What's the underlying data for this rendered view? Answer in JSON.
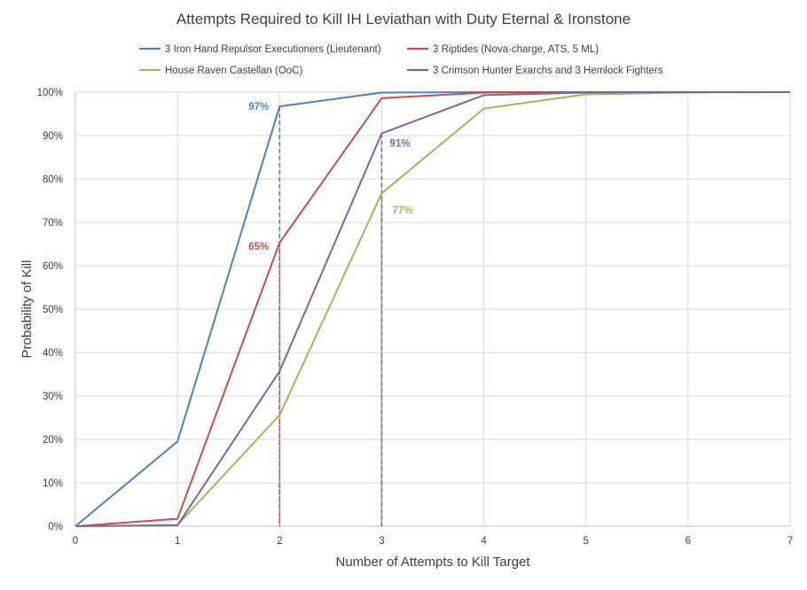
{
  "chart_data": {
    "type": "line",
    "title": "Attempts Required to Kill IH Leviathan with Duty Eternal & Ironstone",
    "xlabel": "Number of Attempts to Kill Target",
    "ylabel": "Probability of Kill",
    "xlim": [
      0,
      7
    ],
    "ylim": [
      0,
      100
    ],
    "x_ticks": [
      "0",
      "1",
      "2",
      "3",
      "4",
      "5",
      "6",
      "7"
    ],
    "y_ticks": [
      "0%",
      "10%",
      "20%",
      "30%",
      "40%",
      "50%",
      "60%",
      "70%",
      "80%",
      "90%",
      "100%"
    ],
    "grid": true,
    "legend_position": "top",
    "x": [
      0,
      1,
      2,
      3,
      4,
      5,
      6,
      7
    ],
    "series": [
      {
        "name": "3 Iron Hand Repulsor Executioners (Lieutenant)",
        "color": "#4f81bd",
        "values": [
          0,
          19.5,
          96.7,
          99.9,
          100,
          100,
          100,
          100
        ],
        "annotation": {
          "x": 2,
          "y": 96.7,
          "label": "97%"
        }
      },
      {
        "name": "3 Riptides (Nova-charge, ATS, 5 ML)",
        "color": "#c0504d",
        "values": [
          0,
          1.7,
          65.3,
          98.6,
          99.9,
          100,
          100,
          100
        ],
        "annotation": {
          "x": 2,
          "y": 65.3,
          "label": "65%"
        }
      },
      {
        "name": "House Raven Castellan (OoC)",
        "color": "#9bbb59",
        "values": [
          0,
          0.3,
          25.6,
          76.7,
          96.2,
          99.5,
          99.9,
          100
        ],
        "annotation": {
          "x": 3,
          "y": 76.7,
          "label": "77%"
        }
      },
      {
        "name": "3 Crimson Hunter Exarchs and 3 Hemlock Fighters",
        "color": "#8064a2",
        "values": [
          0,
          0.2,
          35.7,
          90.5,
          99.3,
          99.9,
          100,
          100
        ],
        "annotation": {
          "x": 3,
          "y": 90.5,
          "label": "91%"
        }
      }
    ]
  }
}
